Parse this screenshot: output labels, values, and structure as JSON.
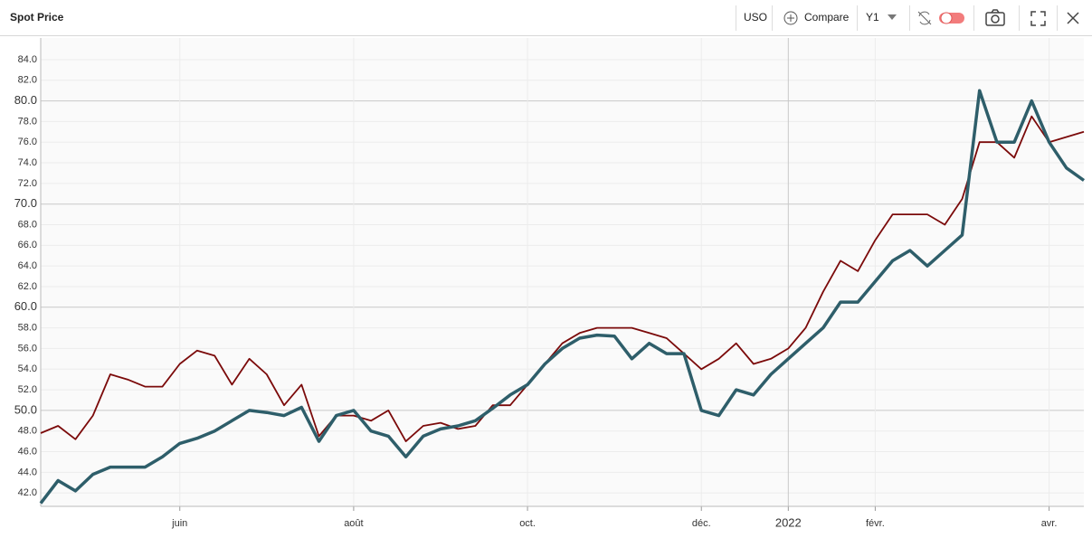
{
  "header": {
    "title": "Spot Price",
    "symbol": "USO",
    "compare": "Compare",
    "axis": "Y1"
  },
  "chart_data": {
    "type": "line",
    "categories": [
      null,
      null,
      null,
      null,
      null,
      null,
      null,
      null,
      "juin",
      null,
      null,
      null,
      null,
      null,
      null,
      null,
      null,
      null,
      "août",
      null,
      null,
      null,
      null,
      null,
      null,
      null,
      null,
      null,
      "oct.",
      null,
      null,
      null,
      null,
      null,
      null,
      null,
      null,
      null,
      "déc.",
      null,
      null,
      null,
      null,
      "2022",
      null,
      null,
      null,
      null,
      "févr.",
      null,
      null,
      null,
      null,
      null,
      null,
      null,
      null,
      null,
      "avr.",
      null,
      null
    ],
    "series": [
      {
        "color": "#7b0a0a",
        "values": [
          47.8,
          48.5,
          47.2,
          49.5,
          53.5,
          53,
          52.3,
          52.3,
          54.5,
          55.8,
          55.3,
          52.5,
          55,
          53.5,
          50.5,
          52.5,
          47.5,
          49.5,
          49.5,
          49,
          50,
          47,
          48.5,
          48.8,
          48.2,
          48.5,
          50.5,
          50.5,
          52.5,
          54.5,
          56.5,
          57.5,
          58,
          58,
          58,
          57.5,
          57,
          55.5,
          54,
          55,
          56.5,
          54.5,
          55,
          56,
          58,
          61.5,
          64.5,
          63.5,
          66.5,
          69,
          69,
          69,
          68,
          70.5,
          76,
          76,
          74.5,
          78.5,
          76,
          76.5,
          77
        ]
      },
      {
        "color": "#2e5e6a",
        "values": [
          41,
          43.2,
          42.2,
          43.8,
          44.5,
          44.5,
          44.5,
          45.5,
          46.8,
          47.3,
          48,
          49,
          50,
          49.8,
          49.5,
          50.3,
          47,
          49.5,
          50,
          48,
          47.5,
          45.5,
          47.5,
          48.2,
          48.5,
          49,
          50.2,
          51.5,
          52.5,
          54.5,
          56,
          57,
          57.3,
          57.2,
          55,
          56.5,
          55.5,
          55.5,
          50,
          49.5,
          52,
          51.5,
          53.5,
          55,
          56.5,
          58,
          60.5,
          60.5,
          62.5,
          64.5,
          65.5,
          64,
          65.5,
          67,
          81,
          76,
          76,
          80,
          76,
          73.5,
          72.3
        ]
      }
    ],
    "ylim": [
      40.7,
      86.1
    ],
    "yticks": [
      {
        "value": 42,
        "label": "42.0"
      },
      {
        "value": 44,
        "label": "44.0"
      },
      {
        "value": 46,
        "label": "46.0"
      },
      {
        "value": 48,
        "label": "48.0"
      },
      {
        "value": 50,
        "label": "50.0"
      },
      {
        "value": 52,
        "label": "52.0"
      },
      {
        "value": 54,
        "label": "54.0"
      },
      {
        "value": 56,
        "label": "56.0"
      },
      {
        "value": 58,
        "label": "58.0"
      },
      {
        "value": 60,
        "label": "60.0"
      },
      {
        "value": 62,
        "label": "62.0"
      },
      {
        "value": 64,
        "label": "64.0"
      },
      {
        "value": 66,
        "label": "66.0"
      },
      {
        "value": 68,
        "label": "68.0"
      },
      {
        "value": 70,
        "label": "70.0"
      },
      {
        "value": 72,
        "label": "72.0"
      },
      {
        "value": 74,
        "label": "74.0"
      },
      {
        "value": 76,
        "label": "76.0"
      },
      {
        "value": 78,
        "label": "78.0"
      },
      {
        "value": 80,
        "label": "80.0"
      },
      {
        "value": 82,
        "label": "82.0"
      },
      {
        "value": 84,
        "label": "84.0"
      }
    ],
    "grid": true
  }
}
